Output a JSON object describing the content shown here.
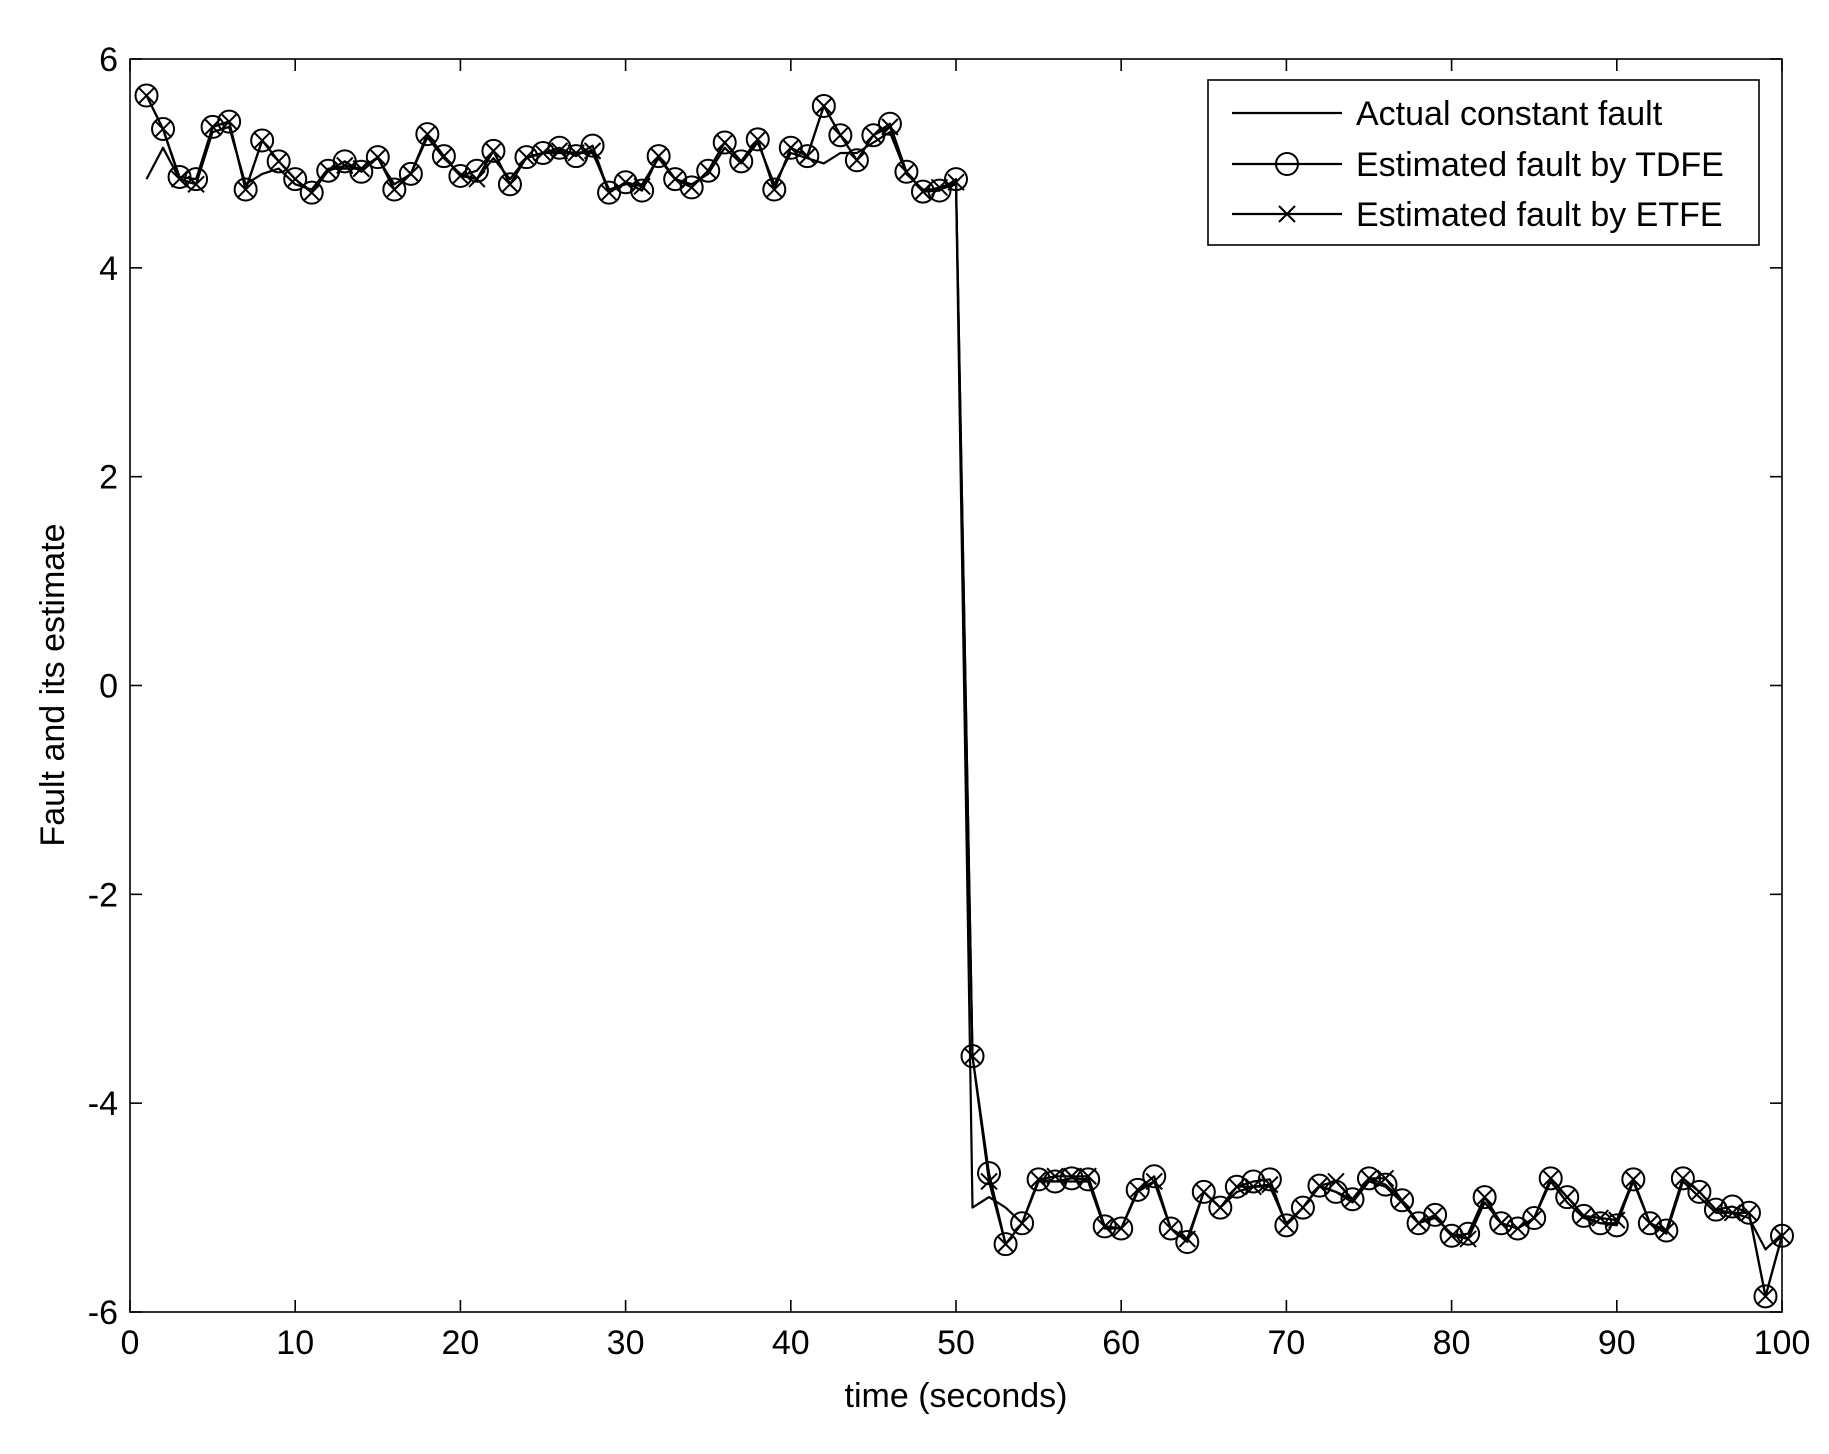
{
  "chart_data": {
    "type": "line",
    "title": "",
    "xlabel": "time (seconds)",
    "ylabel": "Fault and its estimate",
    "xlim": [
      0,
      100
    ],
    "ylim": [
      -6,
      6
    ],
    "xticks": [
      0,
      10,
      20,
      30,
      40,
      50,
      60,
      70,
      80,
      90,
      100
    ],
    "yticks": [
      -6,
      -4,
      -2,
      0,
      2,
      4,
      6
    ],
    "xtick_labels": [
      "0",
      "10",
      "20",
      "30",
      "40",
      "50",
      "60",
      "70",
      "80",
      "90",
      "100"
    ],
    "ytick_labels": [
      "-6",
      "-4",
      "-2",
      "0",
      "2",
      "4",
      "6"
    ],
    "grid": false,
    "legend_position": "top-right",
    "colors": {
      "line": "#000000",
      "background": "#ffffff"
    },
    "x": [
      1,
      2,
      3,
      4,
      5,
      6,
      7,
      8,
      9,
      10,
      11,
      12,
      13,
      14,
      15,
      16,
      17,
      18,
      19,
      20,
      21,
      22,
      23,
      24,
      25,
      26,
      27,
      28,
      29,
      30,
      31,
      32,
      33,
      34,
      35,
      36,
      37,
      38,
      39,
      40,
      41,
      42,
      43,
      44,
      45,
      46,
      47,
      48,
      49,
      50,
      51,
      52,
      53,
      54,
      55,
      56,
      57,
      58,
      59,
      60,
      61,
      62,
      63,
      64,
      65,
      66,
      67,
      68,
      69,
      70,
      71,
      72,
      73,
      74,
      75,
      76,
      77,
      78,
      79,
      80,
      81,
      82,
      83,
      84,
      85,
      86,
      87,
      88,
      89,
      90,
      91,
      92,
      93,
      94,
      95,
      96,
      97,
      98,
      99,
      100
    ],
    "series": [
      {
        "name": "Actual constant fault",
        "marker": "none",
        "x": [
          1,
          2,
          3,
          4,
          5,
          6,
          7,
          8,
          9,
          10,
          11,
          12,
          13,
          14,
          15,
          16,
          17,
          18,
          19,
          20,
          21,
          22,
          23,
          24,
          25,
          26,
          27,
          28,
          29,
          30,
          31,
          32,
          33,
          34,
          35,
          36,
          37,
          38,
          39,
          40,
          41,
          42,
          43,
          44,
          45,
          46,
          47,
          48,
          49,
          50,
          51,
          52,
          53,
          54,
          55,
          56,
          57,
          58,
          59,
          60,
          61,
          62,
          63,
          64,
          65,
          66,
          67,
          68,
          69,
          70,
          71,
          72,
          73,
          74,
          75,
          76,
          77,
          78,
          79,
          80,
          81,
          82,
          83,
          84,
          85,
          86,
          87,
          88,
          89,
          90,
          91,
          92,
          93,
          94,
          95,
          96,
          97,
          98,
          99,
          100
        ],
        "values": [
          4.85,
          5.15,
          4.85,
          4.8,
          5.3,
          5.35,
          4.8,
          4.9,
          4.95,
          4.8,
          4.75,
          4.95,
          4.95,
          4.95,
          5.05,
          4.8,
          4.9,
          5.25,
          5.05,
          4.9,
          4.85,
          5.05,
          4.85,
          5.05,
          5.1,
          5.1,
          5.1,
          5.1,
          4.75,
          4.8,
          4.8,
          5.05,
          4.85,
          4.8,
          4.9,
          5.15,
          5.0,
          5.2,
          4.8,
          5.1,
          5.05,
          5.0,
          5.1,
          5.1,
          5.2,
          5.3,
          4.9,
          4.75,
          4.75,
          4.8,
          -5.0,
          -4.9,
          -5.0,
          -5.15,
          -4.75,
          -4.75,
          -4.75,
          -4.75,
          -5.2,
          -5.2,
          -4.85,
          -4.75,
          -5.2,
          -5.3,
          -4.85,
          -5.0,
          -4.85,
          -4.8,
          -4.8,
          -5.15,
          -5.0,
          -4.8,
          -4.85,
          -4.95,
          -4.75,
          -4.8,
          -4.95,
          -5.15,
          -5.1,
          -5.25,
          -5.3,
          -4.95,
          -5.15,
          -5.2,
          -5.1,
          -4.75,
          -4.95,
          -5.1,
          -5.15,
          -5.15,
          -4.75,
          -5.15,
          -5.25,
          -4.75,
          -4.9,
          -5.05,
          -5.05,
          -5.1,
          -5.4,
          -5.25
        ]
      },
      {
        "name": "Estimated fault by TDFE",
        "marker": "o",
        "x": [
          1,
          2,
          3,
          4,
          5,
          6,
          7,
          8,
          9,
          10,
          11,
          12,
          13,
          14,
          15,
          16,
          17,
          18,
          19,
          20,
          21,
          22,
          23,
          24,
          25,
          26,
          27,
          28,
          29,
          30,
          31,
          32,
          33,
          34,
          35,
          36,
          37,
          38,
          39,
          40,
          41,
          42,
          43,
          44,
          45,
          46,
          47,
          48,
          49,
          50,
          51,
          52,
          53,
          54,
          55,
          56,
          57,
          58,
          59,
          60,
          61,
          62,
          63,
          64,
          65,
          66,
          67,
          68,
          69,
          70,
          71,
          72,
          73,
          74,
          75,
          76,
          77,
          78,
          79,
          80,
          81,
          82,
          83,
          84,
          85,
          86,
          87,
          88,
          89,
          90,
          91,
          92,
          93,
          94,
          95,
          96,
          97,
          98,
          99,
          100
        ],
        "values": [
          5.65,
          5.33,
          4.87,
          4.85,
          5.35,
          5.4,
          4.75,
          5.22,
          5.02,
          4.85,
          4.72,
          4.93,
          5.02,
          4.92,
          5.06,
          4.75,
          4.9,
          5.28,
          5.07,
          4.88,
          4.93,
          5.12,
          4.8,
          5.06,
          5.1,
          5.15,
          5.07,
          5.17,
          4.72,
          4.82,
          4.74,
          5.07,
          4.85,
          4.77,
          4.93,
          5.2,
          5.02,
          5.23,
          4.75,
          5.15,
          5.07,
          5.55,
          5.27,
          5.03,
          5.27,
          5.38,
          4.92,
          4.73,
          4.74,
          4.85,
          -3.55,
          -4.67,
          -5.35,
          -5.15,
          -4.73,
          -4.75,
          -4.72,
          -4.73,
          -5.18,
          -5.2,
          -4.83,
          -4.7,
          -5.2,
          -5.33,
          -4.85,
          -5.0,
          -4.8,
          -4.75,
          -4.73,
          -5.17,
          -5.0,
          -4.79,
          -4.85,
          -4.92,
          -4.72,
          -4.78,
          -4.93,
          -5.15,
          -5.07,
          -5.27,
          -5.25,
          -4.9,
          -5.15,
          -5.2,
          -5.1,
          -4.72,
          -4.9,
          -5.08,
          -5.15,
          -5.17,
          -4.73,
          -5.15,
          -5.22,
          -4.72,
          -4.85,
          -5.02,
          -4.99,
          -5.05,
          -5.85,
          -5.27
        ]
      },
      {
        "name": "Estimated fault by ETFE",
        "marker": "x",
        "x": [
          1,
          2,
          3,
          4,
          5,
          6,
          7,
          8,
          9,
          10,
          11,
          12,
          13,
          14,
          15,
          16,
          17,
          18,
          19,
          20,
          21,
          22,
          23,
          24,
          25,
          26,
          27,
          28,
          29,
          30,
          31,
          32,
          33,
          34,
          35,
          36,
          37,
          38,
          39,
          40,
          41,
          42,
          43,
          44,
          45,
          46,
          47,
          48,
          49,
          50,
          51,
          52,
          53,
          54,
          55,
          56,
          57,
          58,
          59,
          60,
          61,
          62,
          63,
          64,
          65,
          66,
          67,
          68,
          69,
          70,
          71,
          72,
          73,
          74,
          75,
          76,
          77,
          78,
          79,
          80,
          81,
          82,
          83,
          84,
          85,
          86,
          87,
          88,
          89,
          90,
          91,
          92,
          93,
          94,
          95,
          96,
          97,
          98,
          99,
          100
        ],
        "values": [
          5.65,
          5.33,
          4.85,
          4.8,
          5.35,
          5.4,
          4.75,
          5.22,
          5.02,
          4.85,
          4.72,
          4.93,
          4.98,
          4.95,
          5.06,
          4.75,
          4.9,
          5.28,
          5.07,
          4.88,
          4.85,
          5.12,
          4.8,
          5.06,
          5.1,
          5.12,
          5.1,
          5.12,
          4.72,
          4.82,
          4.78,
          5.07,
          4.85,
          4.77,
          4.93,
          5.2,
          5.02,
          5.23,
          4.75,
          5.15,
          5.07,
          5.55,
          5.27,
          5.03,
          5.27,
          5.35,
          4.92,
          4.73,
          4.77,
          4.82,
          -3.55,
          -4.75,
          -5.35,
          -5.15,
          -4.73,
          -4.7,
          -4.7,
          -4.7,
          -5.18,
          -5.2,
          -4.83,
          -4.75,
          -5.2,
          -5.3,
          -4.85,
          -5.0,
          -4.8,
          -4.8,
          -4.78,
          -5.17,
          -5.0,
          -4.79,
          -4.75,
          -4.92,
          -4.72,
          -4.72,
          -4.93,
          -5.15,
          -5.07,
          -5.27,
          -5.3,
          -4.9,
          -5.15,
          -5.2,
          -5.1,
          -4.72,
          -4.9,
          -5.08,
          -5.1,
          -5.12,
          -4.73,
          -5.15,
          -5.22,
          -4.72,
          -4.85,
          -5.02,
          -5.05,
          -5.05,
          -5.85,
          -5.27
        ]
      }
    ]
  }
}
